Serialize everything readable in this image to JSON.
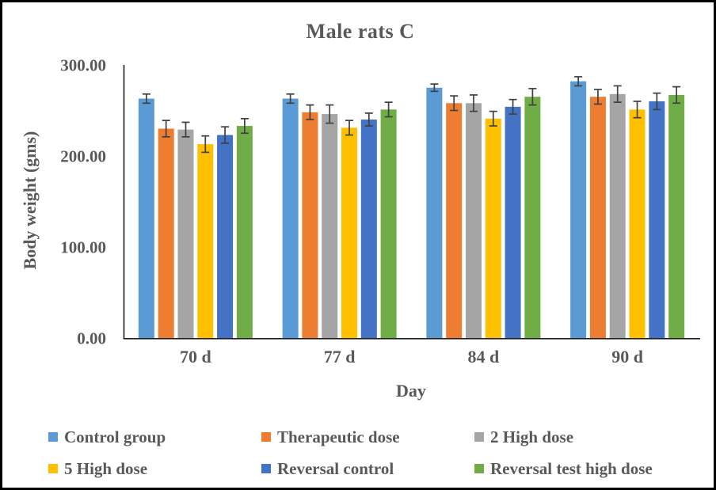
{
  "chart_data": {
    "type": "bar",
    "title": "Male rats C",
    "xlabel": "Day",
    "ylabel": "Body weight (gms)",
    "categories": [
      "70 d",
      "77 d",
      "84 d",
      "90 d"
    ],
    "series": [
      {
        "name": "Control group",
        "color": "#5B9BD5",
        "values": [
          263,
          263,
          275,
          282
        ],
        "errors": [
          5,
          5,
          4,
          5
        ]
      },
      {
        "name": "Therapeutic dose",
        "color": "#ED7D31",
        "values": [
          230,
          248,
          258,
          265
        ],
        "errors": [
          9,
          8,
          8,
          8
        ]
      },
      {
        "name": "2 High dose",
        "color": "#A5A5A5",
        "values": [
          229,
          246,
          258,
          268
        ],
        "errors": [
          8,
          10,
          9,
          9
        ]
      },
      {
        "name": "5 High dose",
        "color": "#FFC000",
        "values": [
          213,
          231,
          241,
          251
        ],
        "errors": [
          9,
          8,
          8,
          9
        ]
      },
      {
        "name": "Reversal control",
        "color": "#4472C4",
        "values": [
          223,
          240,
          254,
          260
        ],
        "errors": [
          9,
          7,
          8,
          9
        ]
      },
      {
        "name": "Reversal test high dose",
        "color": "#70AD47",
        "values": [
          233,
          251,
          265,
          267
        ],
        "errors": [
          8,
          8,
          9,
          9
        ]
      }
    ],
    "ylim": [
      0,
      300
    ],
    "ytick_values": [
      0,
      100,
      200,
      300
    ],
    "ytick_labels": [
      "0.00",
      "100.00",
      "200.00",
      "300.00"
    ],
    "grid": false,
    "error_bars": true,
    "legend_position": "bottom",
    "colors": {
      "text": "#595959",
      "axis_line": "#1f1f1f",
      "error_bar": "#404040",
      "background": "#ffffff",
      "frame_border": "#000000"
    }
  }
}
